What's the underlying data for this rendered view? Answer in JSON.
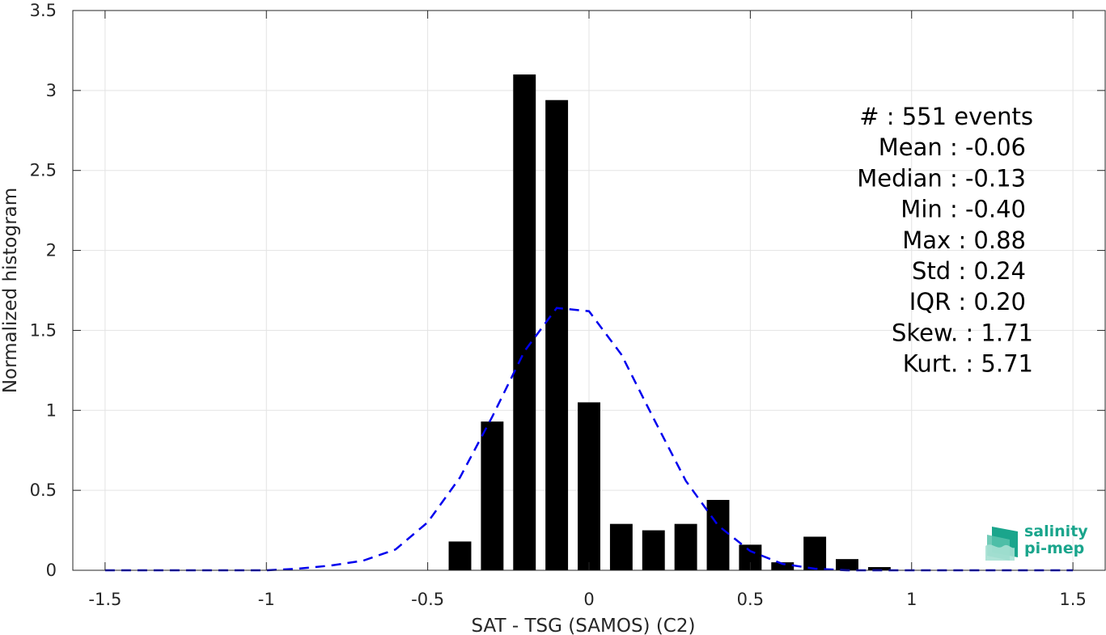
{
  "chart_data": {
    "type": "bar",
    "xlabel": "SAT - TSG (SAMOS) (C2)",
    "ylabel": "Normalized histogram",
    "xlim": [
      -1.6,
      1.6
    ],
    "ylim": [
      0,
      3.5
    ],
    "xticks": [
      -1.5,
      -1,
      -0.5,
      0,
      0.5,
      1,
      1.5
    ],
    "xtick_labels": [
      "-1.5",
      "-1",
      "-0.5",
      "0",
      "0.5",
      "1",
      "1.5"
    ],
    "yticks": [
      0,
      0.5,
      1,
      1.5,
      2,
      2.5,
      3,
      3.5
    ],
    "ytick_labels": [
      "0",
      "0.5",
      "1",
      "1.5",
      "2",
      "2.5",
      "3",
      "3.5"
    ],
    "grid": true,
    "bar_color": "#000000",
    "bars": {
      "x": [
        -0.4,
        -0.3,
        -0.2,
        -0.1,
        0.0,
        0.1,
        0.2,
        0.3,
        0.4,
        0.5,
        0.6,
        0.7,
        0.8,
        0.9
      ],
      "values": [
        0.18,
        0.93,
        3.1,
        2.94,
        1.05,
        0.29,
        0.25,
        0.29,
        0.44,
        0.16,
        0.05,
        0.21,
        0.07,
        0.02
      ]
    },
    "fit_curve": {
      "style": "dashed",
      "color": "#0000ee",
      "x": [
        -1.5,
        -1.4,
        -1.3,
        -1.2,
        -1.1,
        -1.0,
        -0.9,
        -0.8,
        -0.7,
        -0.6,
        -0.5,
        -0.4,
        -0.3,
        -0.2,
        -0.1,
        0.0,
        0.1,
        0.2,
        0.3,
        0.4,
        0.5,
        0.6,
        0.7,
        0.8,
        0.9,
        1.0,
        1.1,
        1.2,
        1.3,
        1.4,
        1.5
      ],
      "y": [
        0.0,
        0.0,
        0.0,
        0.0,
        0.0,
        0.0,
        0.01,
        0.03,
        0.06,
        0.13,
        0.3,
        0.58,
        0.96,
        1.37,
        1.64,
        1.62,
        1.35,
        0.95,
        0.56,
        0.28,
        0.12,
        0.04,
        0.01,
        0.0,
        0.0,
        0.0,
        0.0,
        0.0,
        0.0,
        0.0,
        0.0
      ]
    },
    "stats": [
      {
        "label": "#  : 551 events"
      },
      {
        "label": "Mean : -0.06"
      },
      {
        "label": "Median : -0.13"
      },
      {
        "label": "Min : -0.40"
      },
      {
        "label": "Max : 0.88"
      },
      {
        "label": "Std : 0.24"
      },
      {
        "label": "IQR : 0.20"
      },
      {
        "label": "Skew. : 1.71"
      },
      {
        "label": "Kurt. : 5.71"
      }
    ]
  },
  "logo": {
    "line1": "salinity",
    "line2": "pi-mep",
    "colors": [
      "#1aa58c",
      "#7fd3c0"
    ]
  }
}
